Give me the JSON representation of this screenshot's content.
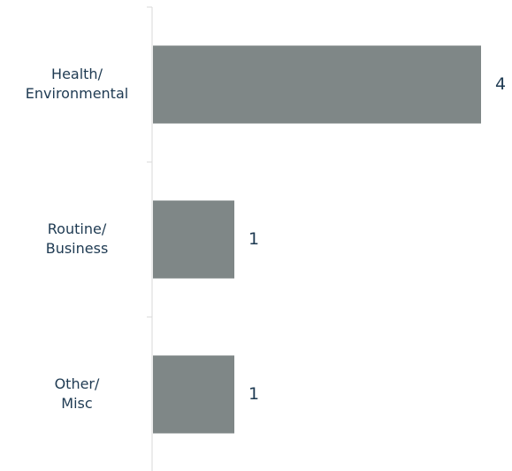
{
  "chart_data": {
    "type": "bar",
    "orientation": "horizontal",
    "categories": [
      [
        "Health/",
        "Environmental"
      ],
      [
        "Routine/",
        "Business"
      ],
      [
        "Other/",
        "Misc"
      ]
    ],
    "values": [
      4,
      1,
      1
    ],
    "value_labels": [
      "4",
      "1",
      "1"
    ],
    "title": "",
    "xlabel": "",
    "ylabel": "",
    "xlim": [
      0,
      4
    ],
    "grid": false,
    "legend": "none",
    "bar_color": "#7f8787",
    "axis_color": "#d8d8d8",
    "text_color": "#1e3a52"
  }
}
